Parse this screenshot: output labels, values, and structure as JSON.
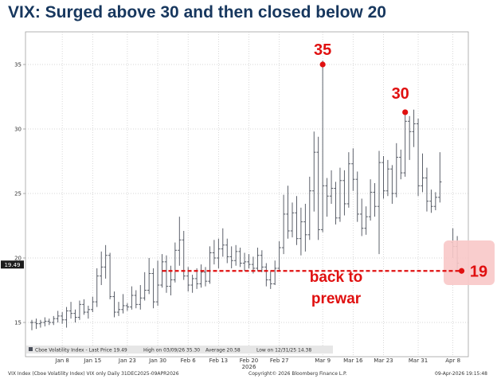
{
  "title": "VIX: Surged above 30 and then closed below 20",
  "chart_data": {
    "type": "ohlc",
    "ylim": [
      13.2,
      36.8
    ],
    "y_ticks": [
      15,
      20,
      25,
      30,
      35
    ],
    "x_ticks": [
      {
        "label": "Jan 8",
        "day": 7
      },
      {
        "label": "Jan 15",
        "day": 14
      },
      {
        "label": "Jan 23",
        "day": 22
      },
      {
        "label": "Jan 30",
        "day": 29
      },
      {
        "label": "Feb 6",
        "day": 36
      },
      {
        "label": "Feb 13",
        "day": 43
      },
      {
        "label": "Feb 20",
        "day": 50
      },
      {
        "label": "Feb 27",
        "day": 57
      },
      {
        "label": "Mar 9",
        "day": 67
      },
      {
        "label": "Mar 16",
        "day": 74
      },
      {
        "label": "Mar 23",
        "day": 81
      },
      {
        "label": "Mar 31",
        "day": 89
      },
      {
        "label": "Apr 8",
        "day": 97
      }
    ],
    "year_label": {
      "label": "2026",
      "day": 50
    },
    "last_price_label": "19.49",
    "legend": {
      "series": "Cboe Volatility Index - Last Price 19.49",
      "high": "High on 03/09/26 35.30",
      "average": "Average 20.58",
      "low": "Low on 12/31/25 14.38"
    },
    "footer": {
      "left": "VIX Index (Cboe Volatility Index) VIX only Daily 31DEC2025-09APR2026",
      "center": "Copyright© 2026 Bloomberg Finance L.P.",
      "right": "09-Apr-2026 19:15:48"
    },
    "annotations": {
      "peak_1": "35",
      "peak_2": "30",
      "current": "19",
      "reference_text_1": "back to",
      "reference_text_2": "prewar"
    },
    "reference_level": 19.49,
    "peak_1_point": {
      "day": 67,
      "value": 35.0
    },
    "peak_2_point": {
      "day": 86,
      "value": 31.3
    },
    "current_point": {
      "day": 99,
      "value": 19.49
    },
    "series": [
      {
        "day": 0,
        "open": 15.0,
        "high": 15.2,
        "low": 14.4,
        "close": 15.0
      },
      {
        "day": 1,
        "open": 15.0,
        "high": 15.3,
        "low": 14.5,
        "close": 14.9
      },
      {
        "day": 2,
        "open": 14.9,
        "high": 15.2,
        "low": 14.6,
        "close": 15.0
      },
      {
        "day": 3,
        "open": 15.0,
        "high": 15.4,
        "low": 14.7,
        "close": 15.1
      },
      {
        "day": 4,
        "open": 15.1,
        "high": 15.3,
        "low": 14.8,
        "close": 15.0
      },
      {
        "day": 5,
        "open": 15.0,
        "high": 15.5,
        "low": 14.8,
        "close": 15.3
      },
      {
        "day": 6,
        "open": 15.3,
        "high": 15.9,
        "low": 15.0,
        "close": 15.5
      },
      {
        "day": 7,
        "open": 15.5,
        "high": 15.8,
        "low": 14.9,
        "close": 15.2
      },
      {
        "day": 8,
        "open": 15.2,
        "high": 16.2,
        "low": 14.6,
        "close": 15.9
      },
      {
        "day": 9,
        "open": 15.9,
        "high": 16.6,
        "low": 15.3,
        "close": 15.7
      },
      {
        "day": 10,
        "open": 15.7,
        "high": 16.0,
        "low": 15.0,
        "close": 15.4
      },
      {
        "day": 11,
        "open": 15.4,
        "high": 16.7,
        "low": 15.2,
        "close": 16.4
      },
      {
        "day": 12,
        "open": 16.4,
        "high": 16.8,
        "low": 15.6,
        "close": 15.8
      },
      {
        "day": 13,
        "open": 15.8,
        "high": 16.3,
        "low": 15.3,
        "close": 16.0
      },
      {
        "day": 14,
        "open": 16.0,
        "high": 17.0,
        "low": 15.8,
        "close": 16.6
      },
      {
        "day": 15,
        "open": 16.6,
        "high": 19.2,
        "low": 16.2,
        "close": 18.6
      },
      {
        "day": 16,
        "open": 18.6,
        "high": 20.5,
        "low": 17.9,
        "close": 19.3
      },
      {
        "day": 17,
        "open": 19.3,
        "high": 21.0,
        "low": 18.4,
        "close": 20.2
      },
      {
        "day": 18,
        "open": 20.2,
        "high": 20.4,
        "low": 16.8,
        "close": 17.0
      },
      {
        "day": 19,
        "open": 17.0,
        "high": 17.4,
        "low": 15.4,
        "close": 15.8
      },
      {
        "day": 20,
        "open": 15.8,
        "high": 16.6,
        "low": 15.5,
        "close": 16.0
      },
      {
        "day": 21,
        "open": 16.0,
        "high": 17.2,
        "low": 15.7,
        "close": 16.3
      },
      {
        "day": 22,
        "open": 16.3,
        "high": 16.5,
        "low": 15.9,
        "close": 16.2
      },
      {
        "day": 23,
        "open": 16.2,
        "high": 17.8,
        "low": 16.0,
        "close": 17.1
      },
      {
        "day": 24,
        "open": 17.1,
        "high": 17.5,
        "low": 16.1,
        "close": 16.4
      },
      {
        "day": 25,
        "open": 16.4,
        "high": 17.9,
        "low": 16.0,
        "close": 16.9
      },
      {
        "day": 26,
        "open": 16.9,
        "high": 18.9,
        "low": 16.7,
        "close": 17.5
      },
      {
        "day": 27,
        "open": 17.5,
        "high": 20.0,
        "low": 17.2,
        "close": 18.8
      },
      {
        "day": 28,
        "open": 18.8,
        "high": 19.2,
        "low": 16.1,
        "close": 16.6
      },
      {
        "day": 29,
        "open": 16.6,
        "high": 19.8,
        "low": 16.3,
        "close": 17.9
      },
      {
        "day": 30,
        "open": 17.9,
        "high": 20.3,
        "low": 17.7,
        "close": 19.7
      },
      {
        "day": 31,
        "open": 19.7,
        "high": 20.2,
        "low": 17.3,
        "close": 17.8
      },
      {
        "day": 32,
        "open": 17.8,
        "high": 19.4,
        "low": 17.1,
        "close": 18.3
      },
      {
        "day": 33,
        "open": 18.3,
        "high": 21.2,
        "low": 18.1,
        "close": 20.6
      },
      {
        "day": 34,
        "open": 20.6,
        "high": 23.2,
        "low": 19.4,
        "close": 21.4
      },
      {
        "day": 35,
        "open": 21.4,
        "high": 22.1,
        "low": 18.3,
        "close": 18.6
      },
      {
        "day": 36,
        "open": 18.6,
        "high": 19.3,
        "low": 17.4,
        "close": 17.9
      },
      {
        "day": 37,
        "open": 17.9,
        "high": 18.7,
        "low": 17.3,
        "close": 18.4
      },
      {
        "day": 38,
        "open": 18.4,
        "high": 19.2,
        "low": 17.6,
        "close": 18.0
      },
      {
        "day": 39,
        "open": 18.0,
        "high": 19.5,
        "low": 17.7,
        "close": 18.9
      },
      {
        "day": 40,
        "open": 18.9,
        "high": 19.3,
        "low": 17.8,
        "close": 18.2
      },
      {
        "day": 41,
        "open": 18.2,
        "high": 20.9,
        "low": 18.0,
        "close": 20.4
      },
      {
        "day": 42,
        "open": 20.4,
        "high": 21.4,
        "low": 19.5,
        "close": 20.0
      },
      {
        "day": 43,
        "open": 20.0,
        "high": 21.5,
        "low": 19.2,
        "close": 20.7
      },
      {
        "day": 44,
        "open": 20.7,
        "high": 22.3,
        "low": 20.1,
        "close": 21.0
      },
      {
        "day": 45,
        "open": 21.0,
        "high": 21.5,
        "low": 19.6,
        "close": 20.1
      },
      {
        "day": 46,
        "open": 20.1,
        "high": 20.9,
        "low": 19.2,
        "close": 19.8
      },
      {
        "day": 47,
        "open": 19.8,
        "high": 21.0,
        "low": 19.4,
        "close": 20.5
      },
      {
        "day": 48,
        "open": 20.5,
        "high": 20.8,
        "low": 19.3,
        "close": 19.6
      },
      {
        "day": 49,
        "open": 19.6,
        "high": 20.4,
        "low": 19.0,
        "close": 19.7
      },
      {
        "day": 50,
        "open": 19.7,
        "high": 20.3,
        "low": 19.2,
        "close": 19.5
      },
      {
        "day": 51,
        "open": 19.5,
        "high": 20.1,
        "low": 18.8,
        "close": 19.2
      },
      {
        "day": 52,
        "open": 19.2,
        "high": 20.8,
        "low": 19.0,
        "close": 20.2
      },
      {
        "day": 53,
        "open": 20.2,
        "high": 20.6,
        "low": 18.9,
        "close": 19.3
      },
      {
        "day": 54,
        "open": 19.3,
        "high": 19.6,
        "low": 17.8,
        "close": 18.3
      },
      {
        "day": 55,
        "open": 18.3,
        "high": 19.0,
        "low": 17.6,
        "close": 18.0
      },
      {
        "day": 56,
        "open": 18.0,
        "high": 19.8,
        "low": 17.9,
        "close": 19.2
      },
      {
        "day": 57,
        "open": 19.2,
        "high": 21.3,
        "low": 19.0,
        "close": 20.8
      },
      {
        "day": 58,
        "open": 20.8,
        "high": 24.9,
        "low": 20.3,
        "close": 23.4
      },
      {
        "day": 59,
        "open": 23.4,
        "high": 25.6,
        "low": 21.5,
        "close": 22.1
      },
      {
        "day": 60,
        "open": 22.1,
        "high": 24.3,
        "low": 21.6,
        "close": 23.5
      },
      {
        "day": 61,
        "open": 23.5,
        "high": 24.8,
        "low": 21.0,
        "close": 21.5
      },
      {
        "day": 62,
        "open": 21.5,
        "high": 23.9,
        "low": 20.2,
        "close": 22.8
      },
      {
        "day": 63,
        "open": 22.8,
        "high": 24.2,
        "low": 20.5,
        "close": 21.8
      },
      {
        "day": 64,
        "open": 21.8,
        "high": 26.3,
        "low": 21.4,
        "close": 25.2
      },
      {
        "day": 65,
        "open": 25.2,
        "high": 29.8,
        "low": 23.6,
        "close": 28.2
      },
      {
        "day": 66,
        "open": 28.2,
        "high": 29.4,
        "low": 21.4,
        "close": 22.2
      },
      {
        "day": 67,
        "open": 22.2,
        "high": 35.3,
        "low": 22.0,
        "close": 25.6
      },
      {
        "day": 68,
        "open": 25.6,
        "high": 26.2,
        "low": 23.2,
        "close": 24.8
      },
      {
        "day": 69,
        "open": 24.8,
        "high": 26.8,
        "low": 24.2,
        "close": 25.4
      },
      {
        "day": 70,
        "open": 25.4,
        "high": 25.9,
        "low": 22.6,
        "close": 23.1
      },
      {
        "day": 71,
        "open": 23.1,
        "high": 27.0,
        "low": 22.8,
        "close": 26.0
      },
      {
        "day": 72,
        "open": 26.0,
        "high": 26.8,
        "low": 23.3,
        "close": 24.2
      },
      {
        "day": 73,
        "open": 24.2,
        "high": 28.2,
        "low": 23.9,
        "close": 27.3
      },
      {
        "day": 74,
        "open": 27.3,
        "high": 28.5,
        "low": 25.2,
        "close": 26.1
      },
      {
        "day": 75,
        "open": 26.1,
        "high": 26.7,
        "low": 22.8,
        "close": 23.4
      },
      {
        "day": 76,
        "open": 23.4,
        "high": 24.6,
        "low": 21.7,
        "close": 22.3
      },
      {
        "day": 77,
        "open": 22.3,
        "high": 24.0,
        "low": 21.8,
        "close": 23.2
      },
      {
        "day": 78,
        "open": 23.2,
        "high": 26.1,
        "low": 22.9,
        "close": 25.1
      },
      {
        "day": 79,
        "open": 25.1,
        "high": 25.8,
        "low": 23.2,
        "close": 24.0
      },
      {
        "day": 80,
        "open": 24.0,
        "high": 28.3,
        "low": 20.3,
        "close": 27.4
      },
      {
        "day": 81,
        "open": 27.4,
        "high": 27.9,
        "low": 24.6,
        "close": 25.2
      },
      {
        "day": 82,
        "open": 25.2,
        "high": 27.6,
        "low": 24.8,
        "close": 26.9
      },
      {
        "day": 83,
        "open": 26.9,
        "high": 27.2,
        "low": 24.2,
        "close": 25.0
      },
      {
        "day": 84,
        "open": 25.0,
        "high": 28.9,
        "low": 24.7,
        "close": 27.8
      },
      {
        "day": 85,
        "open": 27.8,
        "high": 28.4,
        "low": 26.1,
        "close": 26.6
      },
      {
        "day": 86,
        "open": 26.6,
        "high": 31.4,
        "low": 26.3,
        "close": 30.6
      },
      {
        "day": 87,
        "open": 30.6,
        "high": 31.0,
        "low": 27.6,
        "close": 29.8
      },
      {
        "day": 88,
        "open": 29.8,
        "high": 31.5,
        "low": 28.6,
        "close": 30.4
      },
      {
        "day": 89,
        "open": 30.4,
        "high": 30.8,
        "low": 24.8,
        "close": 25.6
      },
      {
        "day": 90,
        "open": 25.6,
        "high": 28.1,
        "low": 25.1,
        "close": 26.2
      },
      {
        "day": 91,
        "open": 26.2,
        "high": 27.0,
        "low": 23.6,
        "close": 24.4
      },
      {
        "day": 92,
        "open": 24.4,
        "high": 25.3,
        "low": 23.5,
        "close": 24.0
      },
      {
        "day": 93,
        "open": 24.0,
        "high": 25.1,
        "low": 23.7,
        "close": 24.7
      },
      {
        "day": 94,
        "open": 24.7,
        "high": 28.2,
        "low": 24.3,
        "close": 25.9
      },
      {
        "day": 97,
        "open": 21.2,
        "high": 22.3,
        "low": 20.0,
        "close": 20.9
      },
      {
        "day": 98,
        "open": 20.9,
        "high": 21.7,
        "low": 19.1,
        "close": 19.6
      }
    ]
  }
}
